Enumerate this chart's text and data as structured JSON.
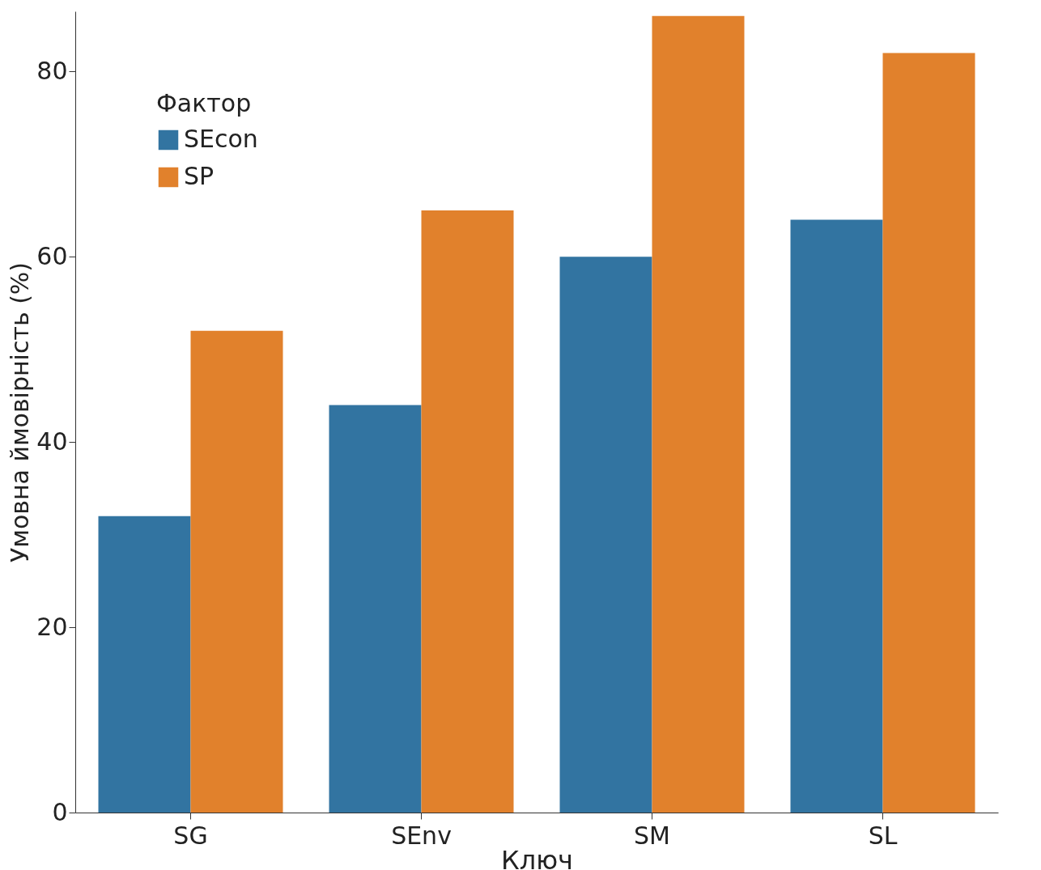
{
  "chart_data": {
    "type": "bar",
    "xlabel": "Ключ",
    "ylabel": "Умовна ймовірність (%)",
    "legend_title": "Фактор",
    "categories": [
      "SG",
      "SEnv",
      "SM",
      "SL"
    ],
    "series": [
      {
        "name": "SEcon",
        "color": "#3274a1",
        "values": [
          32,
          44,
          60,
          64
        ]
      },
      {
        "name": "SP",
        "color": "#e1812c",
        "values": [
          52,
          65,
          86,
          82
        ]
      }
    ],
    "ylim": [
      0,
      86.5
    ],
    "yticks": [
      0,
      20,
      40,
      60,
      80
    ],
    "grid": false,
    "legend": "top left"
  }
}
